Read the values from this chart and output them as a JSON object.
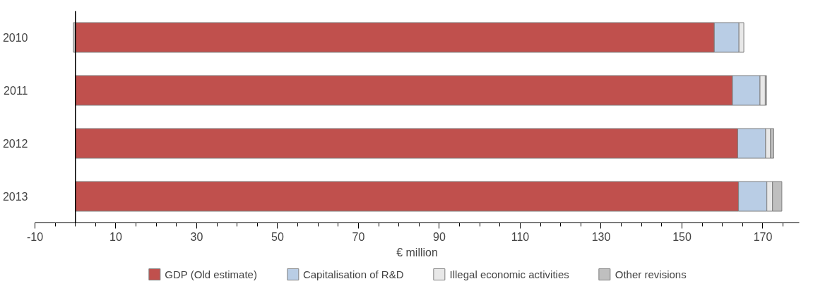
{
  "chart_data": {
    "type": "bar",
    "orientation": "horizontal",
    "stacked": true,
    "xlabel": "€ million",
    "categories": [
      "2010",
      "2011",
      "2012",
      "2013"
    ],
    "series": [
      {
        "name": "GDP (Old estimate)",
        "color": "#c0504d",
        "values": [
          158.0,
          162.5,
          163.8,
          164.0
        ]
      },
      {
        "name": "Capitalisation of R&D",
        "color": "#b9cde5",
        "values": [
          6.1,
          6.8,
          6.9,
          7.0
        ]
      },
      {
        "name": "Illegal economic activities",
        "color": "#e8e8e8",
        "values": [
          1.2,
          1.3,
          1.2,
          1.4
        ]
      },
      {
        "name": "Other revisions",
        "color": "#bfbfbf",
        "values": [
          -0.5,
          0.3,
          0.8,
          2.3
        ]
      }
    ],
    "xlim": [
      -10,
      179
    ],
    "xticks": [
      -10,
      10,
      30,
      50,
      70,
      90,
      110,
      130,
      150,
      170
    ],
    "grid": false,
    "legend": "bottom"
  }
}
